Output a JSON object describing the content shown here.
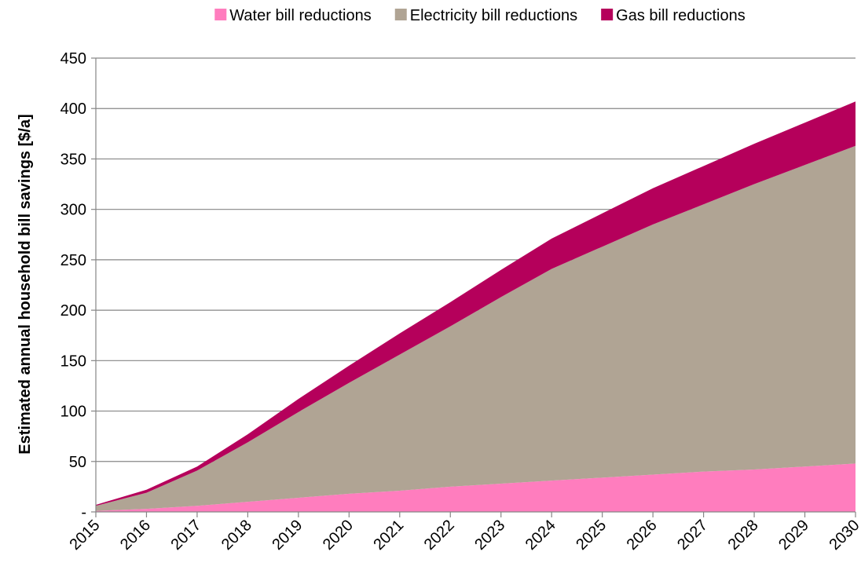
{
  "chart_data": {
    "type": "area",
    "stacked": true,
    "title": "",
    "xlabel": "",
    "ylabel": "Estimated annual household bill savings [$/a]",
    "x": [
      "2015",
      "2016",
      "2017",
      "2018",
      "2019",
      "2020",
      "2021",
      "2022",
      "2023",
      "2024",
      "2025",
      "2026",
      "2027",
      "2028",
      "2029",
      "2030"
    ],
    "ylim": [
      0,
      450
    ],
    "yticks": [
      0,
      50,
      100,
      150,
      200,
      250,
      300,
      350,
      400,
      450
    ],
    "ytick_labels": [
      "-",
      "50",
      "100",
      "150",
      "200",
      "250",
      "300",
      "350",
      "400",
      "450"
    ],
    "grid": true,
    "legend_position": "top",
    "series": [
      {
        "name": "Water bill reductions",
        "color": "#FF7DBE",
        "values": [
          1,
          3,
          6,
          10,
          14,
          18,
          21,
          25,
          28,
          31,
          34,
          37,
          40,
          42,
          45,
          48
        ]
      },
      {
        "name": "Electricity bill reductions",
        "color": "#B0A494",
        "values": [
          5,
          16,
          35,
          59,
          85,
          110,
          135,
          159,
          185,
          210,
          229,
          248,
          265,
          283,
          299,
          315
        ]
      },
      {
        "name": "Gas bill reductions",
        "color": "#B5005B",
        "values": [
          1,
          3,
          4,
          8,
          13,
          17,
          21,
          24,
          27,
          30,
          33,
          36,
          38,
          40,
          42,
          44
        ]
      }
    ]
  }
}
